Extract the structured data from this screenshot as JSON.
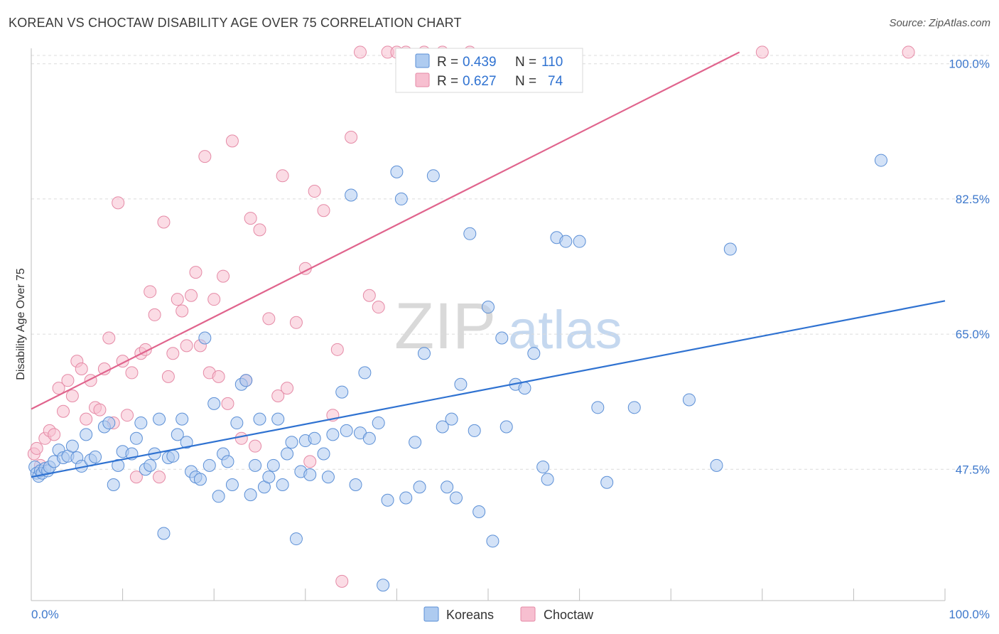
{
  "header": {
    "title": "KOREAN VS CHOCTAW DISABILITY AGE OVER 75 CORRELATION CHART",
    "source": "Source: ZipAtlas.com"
  },
  "watermark": {
    "zip": "ZIP",
    "atlas": "atlas"
  },
  "legend_box": {
    "rows": [
      {
        "r_label": "R = ",
        "r_value": "0.439",
        "n_label": "N = ",
        "n_value": "110"
      },
      {
        "r_label": "R = ",
        "r_value": "0.627",
        "n_label": "N = ",
        "n_value": "74"
      }
    ]
  },
  "chart_data": {
    "type": "scatter",
    "title": "KOREAN VS CHOCTAW DISABILITY AGE OVER 75 CORRELATION CHART",
    "xlabel": "",
    "ylabel": "Disability Age Over 75",
    "xlim": [
      0,
      100
    ],
    "ylim": [
      30.5,
      102
    ],
    "x_tick_labels": [
      "0.0%",
      "100.0%"
    ],
    "y_ticks": [
      47.5,
      65.0,
      82.5,
      100.0
    ],
    "y_tick_labels": [
      "47.5%",
      "65.0%",
      "82.5%",
      "100.0%"
    ],
    "grid": true,
    "legend_position": "bottom-center",
    "colors": {
      "koreans_fill": "#aecbf0",
      "koreans_stroke": "#5b8fd6",
      "koreans_line": "#2f72d1",
      "choctaw_fill": "#f7bfd0",
      "choctaw_stroke": "#e58aa6",
      "choctaw_line": "#e0648d",
      "tick_label": "#3d78cc",
      "grid": "#dcdcdc"
    },
    "series": [
      {
        "name": "Koreans",
        "r": 0.439,
        "n": 110,
        "trend": {
          "x": [
            0,
            100
          ],
          "y": [
            46.5,
            69.3
          ]
        },
        "points": [
          [
            0.4,
            47.8
          ],
          [
            0.6,
            47.0
          ],
          [
            0.8,
            46.6
          ],
          [
            1.0,
            47.3
          ],
          [
            1.2,
            47.0
          ],
          [
            1.5,
            47.6
          ],
          [
            1.8,
            47.3
          ],
          [
            2.0,
            47.8
          ],
          [
            2.5,
            48.5
          ],
          [
            3.0,
            50.0
          ],
          [
            3.5,
            49.0
          ],
          [
            4.0,
            49.2
          ],
          [
            4.5,
            50.5
          ],
          [
            5.0,
            49.0
          ],
          [
            5.5,
            47.9
          ],
          [
            6.0,
            52.0
          ],
          [
            6.5,
            48.7
          ],
          [
            7.0,
            49.1
          ],
          [
            8.0,
            53.0
          ],
          [
            8.5,
            53.5
          ],
          [
            9.0,
            45.5
          ],
          [
            9.5,
            48.0
          ],
          [
            10.0,
            49.8
          ],
          [
            11.0,
            49.5
          ],
          [
            11.5,
            51.5
          ],
          [
            12.0,
            53.5
          ],
          [
            12.5,
            47.5
          ],
          [
            13.0,
            48.0
          ],
          [
            13.5,
            49.5
          ],
          [
            14.0,
            54.0
          ],
          [
            14.5,
            39.2
          ],
          [
            15.0,
            49.0
          ],
          [
            15.5,
            49.2
          ],
          [
            16.0,
            52.0
          ],
          [
            16.5,
            54.0
          ],
          [
            17.0,
            51.0
          ],
          [
            17.5,
            47.2
          ],
          [
            18.0,
            46.5
          ],
          [
            18.5,
            46.2
          ],
          [
            19.0,
            64.5
          ],
          [
            19.5,
            48.0
          ],
          [
            20.0,
            56.0
          ],
          [
            20.5,
            44.0
          ],
          [
            21.0,
            49.5
          ],
          [
            21.5,
            48.5
          ],
          [
            22.0,
            45.5
          ],
          [
            22.5,
            53.5
          ],
          [
            23.0,
            58.5
          ],
          [
            23.5,
            59.0
          ],
          [
            24.0,
            44.2
          ],
          [
            24.5,
            48.0
          ],
          [
            25.0,
            54.0
          ],
          [
            25.5,
            45.2
          ],
          [
            26.0,
            46.5
          ],
          [
            26.5,
            48.0
          ],
          [
            27.0,
            54.0
          ],
          [
            27.5,
            45.5
          ],
          [
            28.0,
            49.5
          ],
          [
            28.5,
            51.0
          ],
          [
            29.0,
            38.5
          ],
          [
            29.5,
            47.2
          ],
          [
            30.0,
            51.2
          ],
          [
            30.5,
            46.8
          ],
          [
            31.0,
            51.5
          ],
          [
            32.0,
            49.5
          ],
          [
            32.5,
            46.5
          ],
          [
            33.0,
            52.0
          ],
          [
            34.0,
            57.5
          ],
          [
            34.5,
            52.5
          ],
          [
            35.0,
            83.0
          ],
          [
            35.5,
            45.5
          ],
          [
            36.0,
            52.2
          ],
          [
            36.5,
            60.0
          ],
          [
            37.0,
            51.5
          ],
          [
            38.0,
            53.5
          ],
          [
            38.5,
            32.5
          ],
          [
            39.0,
            43.5
          ],
          [
            40.0,
            86.0
          ],
          [
            40.5,
            82.5
          ],
          [
            41.0,
            43.8
          ],
          [
            42.0,
            51.0
          ],
          [
            42.5,
            45.2
          ],
          [
            43.0,
            62.5
          ],
          [
            44.0,
            85.5
          ],
          [
            45.0,
            53.0
          ],
          [
            45.5,
            45.2
          ],
          [
            46.0,
            54.0
          ],
          [
            46.5,
            43.8
          ],
          [
            47.0,
            58.5
          ],
          [
            48.0,
            78.0
          ],
          [
            48.5,
            52.5
          ],
          [
            49.0,
            42.0
          ],
          [
            50.0,
            68.5
          ],
          [
            50.5,
            38.2
          ],
          [
            51.5,
            64.5
          ],
          [
            52.0,
            53.0
          ],
          [
            53.0,
            58.5
          ],
          [
            54.0,
            58.0
          ],
          [
            55.0,
            62.5
          ],
          [
            56.0,
            47.8
          ],
          [
            56.5,
            46.2
          ],
          [
            57.5,
            77.5
          ],
          [
            58.5,
            77.0
          ],
          [
            60.0,
            77.0
          ],
          [
            62.0,
            55.5
          ],
          [
            63.0,
            45.8
          ],
          [
            66.0,
            55.5
          ],
          [
            72.0,
            56.5
          ],
          [
            75.0,
            48.0
          ],
          [
            76.5,
            76.0
          ],
          [
            93.0,
            87.5
          ]
        ]
      },
      {
        "name": "Choctaw",
        "r": 0.627,
        "n": 74,
        "trend": {
          "x": [
            0,
            77.5
          ],
          "y": [
            55.3,
            101.5
          ]
        },
        "points": [
          [
            0.3,
            49.5
          ],
          [
            0.6,
            50.2
          ],
          [
            1.0,
            48.0
          ],
          [
            1.5,
            51.5
          ],
          [
            2.0,
            52.5
          ],
          [
            2.5,
            52.0
          ],
          [
            3.0,
            58.0
          ],
          [
            3.5,
            55.0
          ],
          [
            4.0,
            59.0
          ],
          [
            4.5,
            57.0
          ],
          [
            5.0,
            61.5
          ],
          [
            5.5,
            60.5
          ],
          [
            6.0,
            54.0
          ],
          [
            6.5,
            59.0
          ],
          [
            7.0,
            55.5
          ],
          [
            7.5,
            55.2
          ],
          [
            8.0,
            60.5
          ],
          [
            8.5,
            64.5
          ],
          [
            9.0,
            53.5
          ],
          [
            9.5,
            82.0
          ],
          [
            10.0,
            61.5
          ],
          [
            10.5,
            54.5
          ],
          [
            11.0,
            60.0
          ],
          [
            11.5,
            46.5
          ],
          [
            12.0,
            62.5
          ],
          [
            12.5,
            63.0
          ],
          [
            13.0,
            70.5
          ],
          [
            13.5,
            67.5
          ],
          [
            14.0,
            46.5
          ],
          [
            14.5,
            79.5
          ],
          [
            15.0,
            59.5
          ],
          [
            15.5,
            62.5
          ],
          [
            16.0,
            69.5
          ],
          [
            16.5,
            68.0
          ],
          [
            17.0,
            63.5
          ],
          [
            17.5,
            70.0
          ],
          [
            18.0,
            73.0
          ],
          [
            18.5,
            63.5
          ],
          [
            19.0,
            88.0
          ],
          [
            19.5,
            60.0
          ],
          [
            20.0,
            69.5
          ],
          [
            20.5,
            59.5
          ],
          [
            21.0,
            72.5
          ],
          [
            21.5,
            56.0
          ],
          [
            22.0,
            90.0
          ],
          [
            23.0,
            51.5
          ],
          [
            23.5,
            59.0
          ],
          [
            24.0,
            80.0
          ],
          [
            24.5,
            50.5
          ],
          [
            25.0,
            78.5
          ],
          [
            26.0,
            67.0
          ],
          [
            27.0,
            57.0
          ],
          [
            27.5,
            85.5
          ],
          [
            28.0,
            58.0
          ],
          [
            29.0,
            66.5
          ],
          [
            30.0,
            73.5
          ],
          [
            30.5,
            48.5
          ],
          [
            31.0,
            83.5
          ],
          [
            32.0,
            81.0
          ],
          [
            33.0,
            54.5
          ],
          [
            33.5,
            63.0
          ],
          [
            34.0,
            33.0
          ],
          [
            35.0,
            90.5
          ],
          [
            36.0,
            101.5
          ],
          [
            37.0,
            70.0
          ],
          [
            38.0,
            68.5
          ],
          [
            39.0,
            101.5
          ],
          [
            40.0,
            101.5
          ],
          [
            41.0,
            101.5
          ],
          [
            43.0,
            101.5
          ],
          [
            45.0,
            101.5
          ],
          [
            48.0,
            101.5
          ],
          [
            80.0,
            101.5
          ],
          [
            96.0,
            101.5
          ]
        ]
      }
    ]
  },
  "bottom_legend": {
    "items": [
      "Koreans",
      "Choctaw"
    ]
  }
}
